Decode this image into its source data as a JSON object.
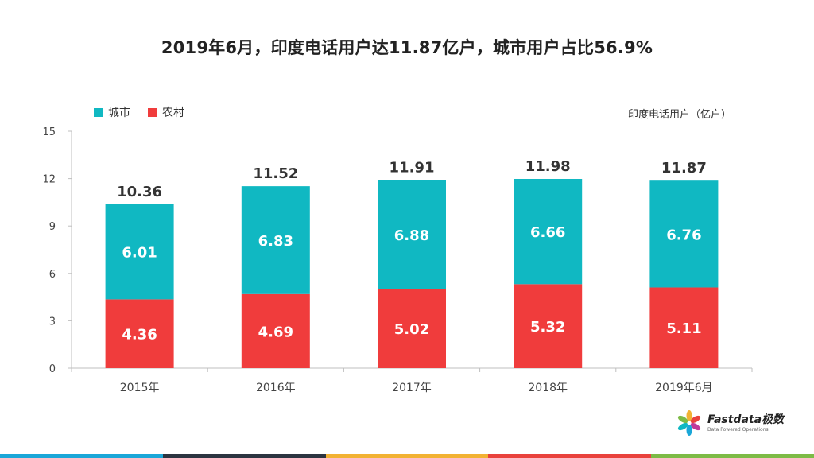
{
  "title": "2019年6月，印度电话用户达11.87亿户，城市用户占比56.9%",
  "unit_label": "印度电话用户（亿户）",
  "legend": [
    {
      "name": "城市",
      "color": "#10b8c2"
    },
    {
      "name": "农村",
      "color": "#f03c3c"
    }
  ],
  "logo": {
    "text": "Fastdata极数",
    "sub": "Data Powered Operations"
  },
  "colors": {
    "urban": "#10b8c2",
    "rural": "#f03c3c",
    "axis": "#bfbfbf",
    "stripes": [
      "#1aa7d8",
      "#2c3440",
      "#f2b233",
      "#e9423c",
      "#7dbb46"
    ]
  },
  "chart_data": {
    "type": "bar",
    "stacked": true,
    "categories": [
      "2015年",
      "2016年",
      "2017年",
      "2018年",
      "2019年6月"
    ],
    "series": [
      {
        "name": "农村",
        "values": [
          4.36,
          4.69,
          5.02,
          5.32,
          5.11
        ]
      },
      {
        "name": "城市",
        "values": [
          6.01,
          6.83,
          6.88,
          6.66,
          6.76
        ]
      }
    ],
    "totals": [
      "10.36",
      "11.52",
      "11.91",
      "11.98",
      "11.87"
    ],
    "yticks": [
      0,
      3,
      6,
      9,
      12,
      15
    ],
    "ylim": [
      0,
      15
    ],
    "title": "2019年6月，印度电话用户达11.87亿户，城市用户占比56.9%",
    "ylabel": "印度电话用户（亿户）",
    "legend_position": "top-left",
    "grid": false
  }
}
